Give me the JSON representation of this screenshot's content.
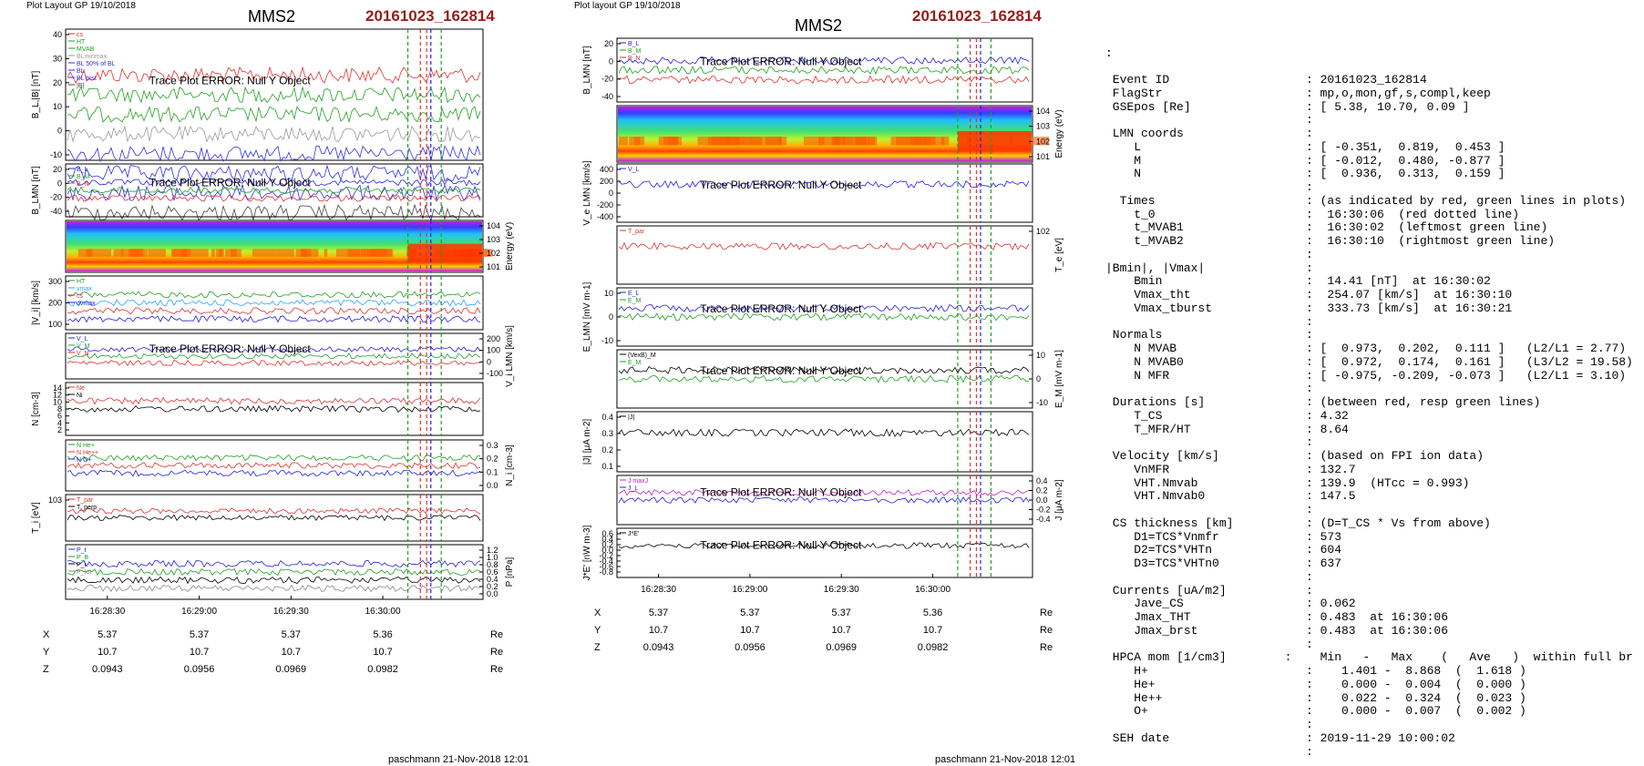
{
  "left": {
    "header": "Plot Layout GP 19/10/2018",
    "title": "MMS2",
    "event": "20161023_162814",
    "footer": "paschmann 21-Nov-2018 12:01",
    "error_msg": "Trace Plot ERROR: Null Y Object",
    "time_ticks": [
      "16:28:30",
      "16:29:00",
      "16:29:30",
      "16:30:00"
    ],
    "orbit": {
      "rows": [
        {
          "label": "X",
          "values": [
            "5.37",
            "5.37",
            "5.37",
            "5.36"
          ],
          "unit": "Re"
        },
        {
          "label": "Y",
          "values": [
            "10.7",
            "10.7",
            "10.7",
            "10.7"
          ],
          "unit": "Re"
        },
        {
          "label": "Z",
          "values": [
            "0.0943",
            "0.0956",
            "0.0969",
            "0.0982"
          ],
          "unit": "Re"
        }
      ]
    },
    "panels": [
      {
        "ylabel": "B_L,|B| [nT]",
        "yticks": [
          "40",
          "30",
          "20",
          "10",
          "0",
          "-10"
        ],
        "legend": [
          "cs",
          "HT",
          "MVAB",
          "BLminmax",
          "BL 50% of BL",
          "BL",
          "BL brst",
          "|B|"
        ],
        "legend_colors": [
          "#e03030",
          "#1fa01f",
          "#1fa01f",
          "#999999",
          "#3030e0",
          "#3030e0",
          "#3030e0",
          "#444444"
        ],
        "has_error": true
      },
      {
        "ylabel": "B_LMN [nT]",
        "yticks": [
          "20",
          "0",
          "-20",
          "-40"
        ],
        "legend": [
          "B_L",
          "B_M",
          "B_N"
        ],
        "legend_colors": [
          "#2020e0",
          "#1fa01f",
          "#e03030"
        ],
        "has_error": true
      },
      {
        "ylabel_right": "Energy (eV)",
        "yticks_right": [
          "10^4",
          "10^3",
          "10^2",
          "10^1"
        ],
        "spectrogram": true
      },
      {
        "ylabel": "|V_i| [km/s]",
        "yticks": [
          "300",
          "200",
          "100"
        ],
        "legend": [
          "HT",
          "vmax",
          "cs",
          "dvmax"
        ],
        "legend_colors": [
          "#1fa01f",
          "#30a0ff",
          "#e03030",
          "#2020e0"
        ]
      },
      {
        "ylabel_right": "V_i LMN [km/s]",
        "yticks_right": [
          "200",
          "100",
          "0",
          "-100"
        ],
        "legend": [
          "V_L",
          "V_M",
          "V_N"
        ],
        "legend_colors": [
          "#2020e0",
          "#1fa01f",
          "#e03030"
        ],
        "has_error": true
      },
      {
        "ylabel": "N [cm^-3]",
        "yticks": [
          "14",
          "12",
          "10",
          "8",
          "6",
          "4",
          "2"
        ],
        "legend": [
          "Ne",
          "Ni"
        ],
        "legend_colors": [
          "#e03030",
          "#000000"
        ]
      },
      {
        "ylabel_right": "N_i [cm^-3]",
        "yticks_right": [
          "0.3",
          "0.2",
          "0.1",
          "0.0"
        ],
        "legend": [
          "N He+",
          "N He++",
          "N O+"
        ],
        "legend_colors": [
          "#1fa01f",
          "#e03030",
          "#2020e0"
        ]
      },
      {
        "ylabel": "T_i [eV]",
        "yticks": [
          "10^3"
        ],
        "legend": [
          "T_par",
          "T_perp"
        ],
        "legend_colors": [
          "#e03030",
          "#000000"
        ]
      },
      {
        "ylabel_right": "P [nPa]",
        "yticks_right": [
          "1.2",
          "1.0",
          "0.8",
          "0.6",
          "0.4",
          "0.2",
          "0.0"
        ],
        "legend": [
          "P_t",
          "P_B",
          "P_i",
          "P_tot"
        ],
        "legend_colors": [
          "#2020e0",
          "#1fa01f",
          "#000000",
          "#888888"
        ]
      }
    ]
  },
  "mid": {
    "header": "Plot layout GP 19/10/2018",
    "title": "MMS2",
    "event": "20161023_162814",
    "footer": "paschmann 21-Nov-2018 12:01",
    "error_msg": "Trace Plot ERROR: Null Y Object",
    "time_ticks": [
      "16:28:30",
      "16:29:00",
      "16:29:30",
      "16:30:00"
    ],
    "orbit": {
      "rows": [
        {
          "label": "X",
          "values": [
            "5.37",
            "5.37",
            "5.37",
            "5.36"
          ],
          "unit": "Re"
        },
        {
          "label": "Y",
          "values": [
            "10.7",
            "10.7",
            "10.7",
            "10.7"
          ],
          "unit": "Re"
        },
        {
          "label": "Z",
          "values": [
            "0.0943",
            "0.0956",
            "0.0969",
            "0.0982"
          ],
          "unit": "Re"
        }
      ]
    },
    "panels": [
      {
        "ylabel": "B_LMN [nT]",
        "yticks": [
          "20",
          "0",
          "-20",
          "-40"
        ],
        "legend": [
          "B_L",
          "B_M",
          "B_N"
        ],
        "legend_colors": [
          "#2020e0",
          "#1fa01f",
          "#e03030"
        ],
        "has_error": true
      },
      {
        "ylabel_right": "Energy (eV)",
        "yticks_right": [
          "10^4",
          "10^3",
          "10^2",
          "10^1"
        ],
        "spectrogram": true
      },
      {
        "ylabel": "V_e LMN [km/s]",
        "yticks": [
          "400",
          "200",
          "0",
          "-200",
          "-400"
        ],
        "legend": [
          "V_L"
        ],
        "legend_colors": [
          "#2020e0"
        ],
        "has_error": true
      },
      {
        "ylabel_right": "T_e [eV]",
        "yticks_right": [
          "10^2"
        ],
        "legend": [
          "T_par"
        ],
        "legend_colors": [
          "#e03030"
        ]
      },
      {
        "ylabel": "E_LMN [mV m^-1]",
        "yticks": [
          "10",
          "0",
          "-10"
        ],
        "legend": [
          "E_L",
          "E_M"
        ],
        "legend_colors": [
          "#2020e0",
          "#1fa01f"
        ],
        "has_error": true
      },
      {
        "ylabel_right": "E_M [mV m^-1]",
        "yticks_right": [
          "10",
          "0",
          "-10"
        ],
        "legend": [
          "(VexB)_M",
          "E_M"
        ],
        "legend_colors": [
          "#000000",
          "#1fa01f"
        ],
        "has_error": true
      },
      {
        "ylabel": "|J| [μA m^-2]",
        "yticks": [
          "0.4",
          "0.3",
          "0.2",
          "0.1"
        ],
        "legend": [
          "|J|"
        ],
        "legend_colors": [
          "#000000"
        ]
      },
      {
        "ylabel_right": "J [μA m^-2]",
        "yticks_right": [
          "0.4",
          "0.2",
          "0.0",
          "-0.2",
          "-0.4"
        ],
        "legend": [
          "J maxJ",
          "J_L"
        ],
        "legend_colors": [
          "#c020c0",
          "#2020e0"
        ],
        "has_error": true
      },
      {
        "ylabel": "J*E' [nW m^-3]",
        "yticks": [
          "0.6",
          "0.4",
          "0.2",
          "0.0",
          "-0.2",
          "-0.4",
          "-0.6",
          "-0.8"
        ],
        "legend": [
          "J*E'"
        ],
        "legend_colors": [
          "#000000"
        ],
        "has_error": true
      }
    ]
  },
  "info": {
    "lead": ":",
    "lines": [
      [
        " Event ID",
        ": 20161023_162814"
      ],
      [
        " FlagStr",
        ": mp,o,mon,gf,s,compl,keep"
      ],
      [
        " GSEpos [Re]",
        ": [ 5.38, 10.70, 0.09 ]"
      ],
      [
        "",
        ":"
      ],
      [
        " LMN coords",
        ":"
      ],
      [
        "    L",
        ": [ -0.351,  0.819,  0.453 ]"
      ],
      [
        "    M",
        ": [ -0.012,  0.480, -0.877 ]"
      ],
      [
        "    N",
        ": [  0.936,  0.313,  0.159 ]"
      ],
      [
        "",
        ":"
      ],
      [
        "  Times",
        ": (as indicated by red, green lines in plots)"
      ],
      [
        "    t_0",
        ":  16:30:06  (red dotted line)"
      ],
      [
        "    t_MVAB1",
        ":  16:30:02  (leftmost green line)"
      ],
      [
        "    t_MVAB2",
        ":  16:30:10  (rightmost green line)"
      ],
      [
        "",
        ":"
      ],
      [
        "|Bmin|, |Vmax|",
        ":"
      ],
      [
        "    Bmin",
        ":  14.41 [nT]  at 16:30:02"
      ],
      [
        "    Vmax_tht",
        ":  254.07 [km/s]  at 16:30:10"
      ],
      [
        "    Vmax_tburst",
        ":  333.73 [km/s]  at 16:30:21"
      ],
      [
        "",
        ":"
      ],
      [
        " Normals",
        ":"
      ],
      [
        "    N MVAB",
        ": [  0.973,  0.202,  0.111 ]   (L2/L1 = 2.77)"
      ],
      [
        "    N MVAB0",
        ": [  0.972,  0.174,  0.161 ]   (L3/L2 = 19.58)"
      ],
      [
        "    N MFR",
        ": [ -0.975, -0.209, -0.073 ]   (L2/L1 = 3.10)"
      ],
      [
        "",
        ":"
      ],
      [
        " Durations [s]",
        ": (between red, resp green lines)"
      ],
      [
        "    T_CS",
        ": 4.32"
      ],
      [
        "    T_MFR/HT",
        ": 8.64"
      ],
      [
        "",
        ":"
      ],
      [
        " Velocity [km/s]",
        ": (based on FPI ion data)"
      ],
      [
        "    VnMFR",
        ": 132.7"
      ],
      [
        "    VHT.Nmvab",
        ": 139.9  (HTcc = 0.993)"
      ],
      [
        "    VHT.Nmvab0",
        ": 147.5"
      ],
      [
        "",
        ":"
      ],
      [
        " CS thickness [km]",
        ": (D=T_CS * Vs from above)"
      ],
      [
        "    D1=TCS*Vnmfr",
        ": 573"
      ],
      [
        "    D2=TCS*VHTn",
        ": 604"
      ],
      [
        "    D3=TCS*VHTn0",
        ": 637"
      ],
      [
        "",
        ":"
      ],
      [
        " Currents [uA/m2]",
        ":"
      ],
      [
        "    Jave_CS",
        ": 0.062"
      ],
      [
        "    Jmax_THT",
        ": 0.483  at 16:30:06"
      ],
      [
        "    Jmax_brst",
        ": 0.483  at 16:30:06"
      ],
      [
        "",
        ":"
      ],
      [
        " HPCA mom [1/cm3]",
        ":    Min   -   Max    (   Ave   )  within full brst int"
      ],
      [
        "    H+",
        ":    1.401 -  8.868  (  1.618 )"
      ],
      [
        "    He+",
        ":    0.000 -  0.004  (  0.000 )"
      ],
      [
        "    He++",
        ":    0.022 -  0.324  (  0.023 )"
      ],
      [
        "    O+",
        ":    0.000 -  0.007  (  0.002 )"
      ],
      [
        "",
        ":"
      ],
      [
        " SEH date",
        ": 2019-11-29 10:00:02"
      ],
      [
        "",
        ":"
      ]
    ]
  }
}
